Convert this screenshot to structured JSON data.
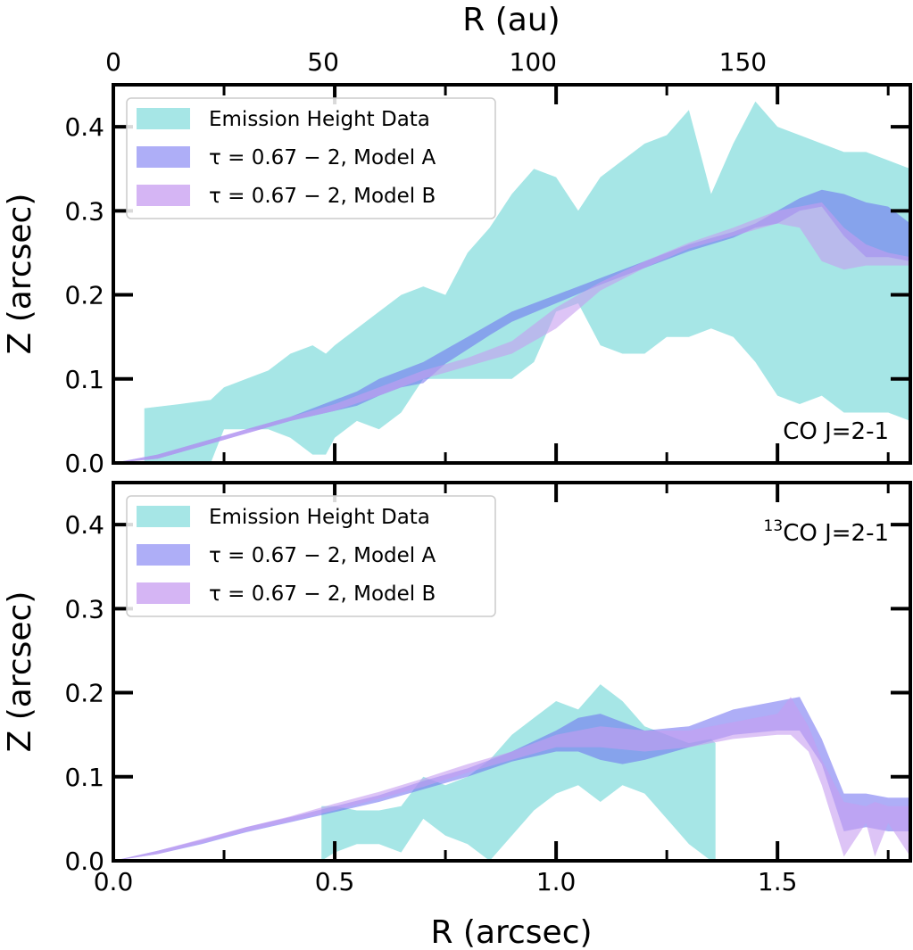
{
  "figure": {
    "x_label": "R (arcsec)",
    "top_x_label": "R (au)",
    "y_label": "Z (arcsec)"
  },
  "colors": {
    "data": "#a6e6e6",
    "model_a": "#6b6bf0",
    "model_b": "#c79cf0"
  },
  "chart_data": [
    {
      "type": "area",
      "panel_label": "CO J=2-1",
      "xlim": [
        0.0,
        1.8
      ],
      "ylim": [
        0.0,
        0.45
      ],
      "x_ticks": [
        "0.0",
        "0.5",
        "1.0",
        "1.5"
      ],
      "y_ticks": [
        "0.0",
        "0.1",
        "0.2",
        "0.3",
        "0.4"
      ],
      "top_x_ticks": [
        "0",
        "50",
        "100",
        "150"
      ],
      "top_x_tick_values_au": [
        0,
        50,
        100,
        150
      ],
      "au_per_arcsec": 105.5,
      "legend": [
        "Emission Height Data",
        "τ = 0.67 − 2, Model A",
        "τ = 0.67 − 2, Model B"
      ],
      "series": [
        {
          "name": "Emission Height Data",
          "x": [
            0.07,
            0.15,
            0.22,
            0.25,
            0.3,
            0.35,
            0.4,
            0.45,
            0.48,
            0.5,
            0.55,
            0.6,
            0.65,
            0.7,
            0.75,
            0.8,
            0.85,
            0.9,
            0.95,
            1.0,
            1.05,
            1.1,
            1.15,
            1.2,
            1.25,
            1.3,
            1.35,
            1.4,
            1.45,
            1.5,
            1.55,
            1.6,
            1.65,
            1.7,
            1.75,
            1.8
          ],
          "upper": [
            0.065,
            0.07,
            0.075,
            0.09,
            0.1,
            0.11,
            0.13,
            0.14,
            0.13,
            0.14,
            0.16,
            0.18,
            0.2,
            0.21,
            0.2,
            0.25,
            0.28,
            0.32,
            0.35,
            0.34,
            0.3,
            0.34,
            0.36,
            0.38,
            0.39,
            0.42,
            0.32,
            0.38,
            0.43,
            0.4,
            0.39,
            0.38,
            0.37,
            0.37,
            0.36,
            0.35
          ],
          "lower": [
            0.0,
            0.0,
            0.0,
            0.04,
            0.04,
            0.04,
            0.03,
            0.01,
            0.01,
            0.03,
            0.05,
            0.04,
            0.06,
            0.1,
            0.1,
            0.1,
            0.1,
            0.1,
            0.12,
            0.18,
            0.19,
            0.14,
            0.13,
            0.13,
            0.15,
            0.15,
            0.16,
            0.15,
            0.12,
            0.08,
            0.07,
            0.08,
            0.06,
            0.06,
            0.06,
            0.05
          ]
        },
        {
          "name": "τ = 0.67 − 2, Model A",
          "x": [
            0.0,
            0.1,
            0.2,
            0.3,
            0.4,
            0.5,
            0.55,
            0.6,
            0.65,
            0.7,
            0.75,
            0.8,
            0.85,
            0.9,
            1.0,
            1.1,
            1.2,
            1.3,
            1.4,
            1.45,
            1.5,
            1.55,
            1.6,
            1.65,
            1.7,
            1.75,
            1.8
          ],
          "upper": [
            0.0,
            0.01,
            0.025,
            0.04,
            0.055,
            0.075,
            0.085,
            0.1,
            0.11,
            0.12,
            0.135,
            0.15,
            0.165,
            0.18,
            0.2,
            0.22,
            0.24,
            0.26,
            0.275,
            0.285,
            0.3,
            0.315,
            0.325,
            0.32,
            0.31,
            0.305,
            0.285
          ],
          "lower": [
            0.0,
            0.005,
            0.02,
            0.035,
            0.05,
            0.062,
            0.068,
            0.08,
            0.09,
            0.095,
            0.118,
            0.135,
            0.152,
            0.168,
            0.19,
            0.212,
            0.232,
            0.252,
            0.268,
            0.28,
            0.285,
            0.3,
            0.305,
            0.27,
            0.245,
            0.245,
            0.24
          ]
        },
        {
          "name": "τ = 0.67 − 2, Model B",
          "x": [
            0.0,
            0.1,
            0.2,
            0.3,
            0.4,
            0.5,
            0.6,
            0.7,
            0.8,
            0.9,
            1.0,
            1.1,
            1.2,
            1.3,
            1.4,
            1.5,
            1.55,
            1.6,
            1.65,
            1.7,
            1.75,
            1.8
          ],
          "upper": [
            0.0,
            0.01,
            0.025,
            0.04,
            0.055,
            0.07,
            0.09,
            0.11,
            0.125,
            0.145,
            0.185,
            0.215,
            0.24,
            0.262,
            0.28,
            0.3,
            0.305,
            0.31,
            0.28,
            0.26,
            0.25,
            0.245
          ],
          "lower": [
            0.0,
            0.005,
            0.02,
            0.035,
            0.05,
            0.062,
            0.08,
            0.1,
            0.115,
            0.13,
            0.16,
            0.205,
            0.232,
            0.255,
            0.27,
            0.285,
            0.28,
            0.24,
            0.23,
            0.235,
            0.235,
            0.235
          ]
        }
      ]
    },
    {
      "type": "area",
      "panel_label_prefix": "13",
      "panel_label": "CO J=2-1",
      "xlim": [
        0.0,
        1.8
      ],
      "ylim": [
        0.0,
        0.45
      ],
      "x_ticks": [
        "0.0",
        "0.5",
        "1.0",
        "1.5"
      ],
      "y_ticks": [
        "0.0",
        "0.1",
        "0.2",
        "0.3",
        "0.4"
      ],
      "legend": [
        "Emission Height Data",
        "τ = 0.67 − 2, Model A",
        "τ = 0.67 − 2, Model B"
      ],
      "series": [
        {
          "name": "Emission Height Data",
          "x": [
            0.47,
            0.5,
            0.55,
            0.6,
            0.65,
            0.7,
            0.75,
            0.8,
            0.85,
            0.9,
            0.95,
            1.0,
            1.05,
            1.1,
            1.15,
            1.2,
            1.25,
            1.3,
            1.35,
            1.36
          ],
          "upper": [
            0.065,
            0.065,
            0.06,
            0.06,
            0.065,
            0.1,
            0.09,
            0.1,
            0.12,
            0.15,
            0.17,
            0.19,
            0.18,
            0.21,
            0.19,
            0.16,
            0.15,
            0.14,
            0.145,
            0.14
          ],
          "lower": [
            0.0,
            0.01,
            0.02,
            0.02,
            0.01,
            0.05,
            0.03,
            0.02,
            0.0,
            0.03,
            0.06,
            0.08,
            0.09,
            0.07,
            0.09,
            0.08,
            0.05,
            0.02,
            0.0,
            0.0
          ]
        },
        {
          "name": "τ = 0.67 − 2, Model A",
          "x": [
            0.0,
            0.1,
            0.2,
            0.3,
            0.4,
            0.5,
            0.6,
            0.7,
            0.8,
            0.9,
            1.0,
            1.05,
            1.1,
            1.15,
            1.2,
            1.3,
            1.4,
            1.5,
            1.55,
            1.6,
            1.65,
            1.7,
            1.75,
            1.8
          ],
          "upper": [
            0.0,
            0.012,
            0.025,
            0.04,
            0.052,
            0.065,
            0.078,
            0.095,
            0.11,
            0.13,
            0.155,
            0.17,
            0.175,
            0.165,
            0.155,
            0.16,
            0.18,
            0.19,
            0.195,
            0.145,
            0.08,
            0.08,
            0.075,
            0.075
          ],
          "lower": [
            0.0,
            0.008,
            0.02,
            0.034,
            0.046,
            0.058,
            0.07,
            0.085,
            0.1,
            0.118,
            0.13,
            0.13,
            0.12,
            0.115,
            0.12,
            0.135,
            0.15,
            0.155,
            0.155,
            0.115,
            0.035,
            0.04,
            0.035,
            0.035
          ]
        },
        {
          "name": "τ = 0.67 − 2, Model B",
          "x": [
            0.0,
            0.1,
            0.2,
            0.3,
            0.4,
            0.5,
            0.6,
            0.7,
            0.8,
            0.9,
            1.0,
            1.1,
            1.2,
            1.3,
            1.4,
            1.5,
            1.53,
            1.57,
            1.6,
            1.65,
            1.7,
            1.72,
            1.75,
            1.8
          ],
          "upper": [
            0.0,
            0.012,
            0.026,
            0.04,
            0.053,
            0.068,
            0.082,
            0.098,
            0.115,
            0.13,
            0.15,
            0.16,
            0.155,
            0.155,
            0.165,
            0.175,
            0.195,
            0.16,
            0.12,
            0.07,
            0.065,
            0.07,
            0.065,
            0.065
          ],
          "lower": [
            0.0,
            0.008,
            0.021,
            0.035,
            0.047,
            0.06,
            0.074,
            0.088,
            0.105,
            0.12,
            0.135,
            0.135,
            0.13,
            0.135,
            0.145,
            0.15,
            0.15,
            0.13,
            0.09,
            0.005,
            0.045,
            0.005,
            0.045,
            0.005
          ]
        }
      ]
    }
  ]
}
